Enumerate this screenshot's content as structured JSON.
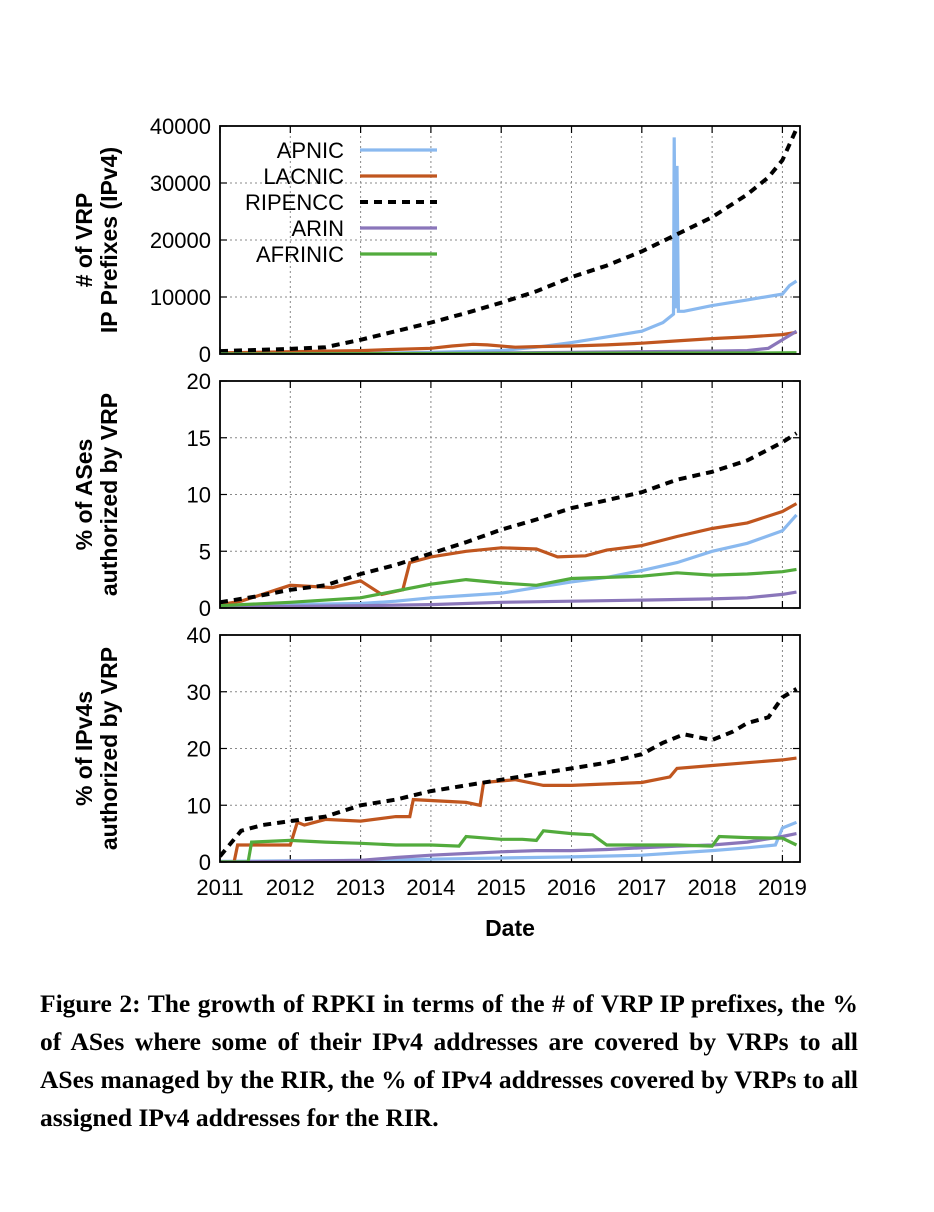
{
  "caption": "Figure 2: The growth of RPKI in terms of the # of VRP IP prefixes, the % of ASes where some of their IPv4 addresses are covered by VRPs to all ASes managed by the RIR, the % of IPv4 addresses covered by VRPs to all assigned IPv4 addresses for the RIR.",
  "chart_data": [
    {
      "type": "line",
      "ylabel": [
        "# of VRP",
        "IP Prefixes (IPv4)"
      ],
      "xlim": [
        2011,
        2019.25
      ],
      "ylim": [
        0,
        40000
      ],
      "yticks": [
        "0",
        "10000",
        "20000",
        "30000",
        "40000"
      ],
      "grid": true,
      "legend_position": "top-left",
      "series": [
        {
          "name": "APNIC",
          "color": "#8ab9ef",
          "style": "solid",
          "x": [
            2011,
            2012,
            2013,
            2014,
            2015,
            2015.5,
            2016,
            2016.5,
            2017,
            2017.3,
            2017.45,
            2017.46,
            2017.48,
            2017.5,
            2017.52,
            2017.6,
            2018,
            2018.5,
            2019,
            2019.1,
            2019.2
          ],
          "y": [
            0,
            0,
            100,
            300,
            600,
            1200,
            2000,
            3000,
            4000,
            5500,
            7000,
            38000,
            8000,
            33000,
            7500,
            7500,
            8500,
            9500,
            10500,
            12000,
            12800
          ]
        },
        {
          "name": "LACNIC",
          "color": "#c0561f",
          "style": "solid",
          "x": [
            2011,
            2012,
            2012.5,
            2013,
            2013.5,
            2014,
            2014.3,
            2014.6,
            2014.8,
            2015.2,
            2015.5,
            2016,
            2016.5,
            2017,
            2017.5,
            2018,
            2018.5,
            2019,
            2019.2
          ],
          "y": [
            200,
            400,
            500,
            600,
            800,
            1000,
            1400,
            1700,
            1600,
            1200,
            1300,
            1400,
            1600,
            1900,
            2300,
            2700,
            3000,
            3400,
            3800
          ]
        },
        {
          "name": "RIPENCC",
          "color": "#000000",
          "style": "dashed",
          "x": [
            2011,
            2011.5,
            2012,
            2012.5,
            2013,
            2013.5,
            2014,
            2014.5,
            2015,
            2015.5,
            2016,
            2016.5,
            2017,
            2017.5,
            2018,
            2018.5,
            2018.8,
            2019,
            2019.2
          ],
          "y": [
            500,
            700,
            900,
            1200,
            2500,
            4000,
            5500,
            7200,
            9000,
            11000,
            13500,
            15500,
            18000,
            21000,
            24000,
            28000,
            31000,
            34000,
            39500
          ]
        },
        {
          "name": "ARIN",
          "color": "#8a76ba",
          "style": "solid",
          "x": [
            2011,
            2012,
            2013,
            2014,
            2015,
            2016,
            2017,
            2018,
            2018.5,
            2018.8,
            2019,
            2019.2
          ],
          "y": [
            0,
            0,
            50,
            100,
            200,
            300,
            400,
            500,
            600,
            1000,
            2500,
            4000
          ]
        },
        {
          "name": "AFRINIC",
          "color": "#52ab3c",
          "style": "solid",
          "x": [
            2011,
            2013,
            2015,
            2017,
            2019,
            2019.2
          ],
          "y": [
            0,
            50,
            100,
            150,
            200,
            220
          ]
        }
      ]
    },
    {
      "type": "line",
      "ylabel": [
        "% of ASes",
        "authorized by VRP"
      ],
      "xlim": [
        2011,
        2019.25
      ],
      "ylim": [
        0,
        20
      ],
      "yticks": [
        "0",
        "5",
        "10",
        "15",
        "20"
      ],
      "grid": true,
      "series": [
        {
          "name": "APNIC",
          "color": "#8ab9ef",
          "style": "solid",
          "x": [
            2011,
            2012,
            2013,
            2013.5,
            2014,
            2014.5,
            2015,
            2015.5,
            2016,
            2016.5,
            2017,
            2017.5,
            2018,
            2018.5,
            2019,
            2019.2
          ],
          "y": [
            0.2,
            0.3,
            0.4,
            0.6,
            0.9,
            1.1,
            1.3,
            1.8,
            2.3,
            2.7,
            3.3,
            4.0,
            5.0,
            5.7,
            6.8,
            8.2
          ]
        },
        {
          "name": "LACNIC",
          "color": "#c0561f",
          "style": "solid",
          "x": [
            2011,
            2011.3,
            2011.6,
            2012,
            2012.6,
            2013,
            2013.3,
            2013.6,
            2013.7,
            2014,
            2014.5,
            2015,
            2015.5,
            2015.8,
            2016.2,
            2016.5,
            2017,
            2017.5,
            2018,
            2018.5,
            2019,
            2019.2
          ],
          "y": [
            0.3,
            0.6,
            1.2,
            2.0,
            1.8,
            2.4,
            1.2,
            1.6,
            4.0,
            4.5,
            5.0,
            5.3,
            5.2,
            4.5,
            4.6,
            5.1,
            5.5,
            6.3,
            7.0,
            7.5,
            8.5,
            9.2
          ]
        },
        {
          "name": "RIPENCC",
          "color": "#000000",
          "style": "dashed",
          "x": [
            2011,
            2011.5,
            2012,
            2012.5,
            2013,
            2013.5,
            2014,
            2014.5,
            2015,
            2015.5,
            2016,
            2016.5,
            2017,
            2017.5,
            2018,
            2018.5,
            2019,
            2019.2
          ],
          "y": [
            0.5,
            1.0,
            1.6,
            2.0,
            3.0,
            3.8,
            4.8,
            5.8,
            6.9,
            7.8,
            8.8,
            9.5,
            10.2,
            11.3,
            12.0,
            13.0,
            14.6,
            15.4
          ]
        },
        {
          "name": "ARIN",
          "color": "#8a76ba",
          "style": "solid",
          "x": [
            2011,
            2012,
            2013,
            2014,
            2015,
            2016,
            2017,
            2018,
            2018.5,
            2019,
            2019.2
          ],
          "y": [
            0.1,
            0.15,
            0.2,
            0.3,
            0.5,
            0.6,
            0.7,
            0.8,
            0.9,
            1.2,
            1.4
          ]
        },
        {
          "name": "AFRINIC",
          "color": "#52ab3c",
          "style": "solid",
          "x": [
            2011,
            2012,
            2013,
            2013.5,
            2014,
            2014.5,
            2015,
            2015.5,
            2016,
            2016.5,
            2017,
            2017.5,
            2018,
            2018.5,
            2019,
            2019.2
          ],
          "y": [
            0.2,
            0.5,
            0.9,
            1.5,
            2.1,
            2.5,
            2.2,
            2.0,
            2.6,
            2.7,
            2.8,
            3.1,
            2.9,
            3.0,
            3.2,
            3.4
          ]
        }
      ]
    },
    {
      "type": "line",
      "ylabel": [
        "% of IPv4s",
        "authorized by VRP"
      ],
      "xlabel": "Date",
      "xlim": [
        2011,
        2019.25
      ],
      "ylim": [
        0,
        40
      ],
      "yticks": [
        "0",
        "10",
        "20",
        "30",
        "40"
      ],
      "xticks": [
        "2011",
        "2012",
        "2013",
        "2014",
        "2015",
        "2016",
        "2017",
        "2018",
        "2019"
      ],
      "grid": true,
      "series": [
        {
          "name": "APNIC",
          "color": "#8ab9ef",
          "style": "solid",
          "x": [
            2011,
            2012,
            2013,
            2014,
            2015,
            2016,
            2017,
            2017.5,
            2018,
            2018.5,
            2018.9,
            2019,
            2019.2
          ],
          "y": [
            0.1,
            0.2,
            0.3,
            0.5,
            0.7,
            0.9,
            1.2,
            1.6,
            2.0,
            2.5,
            3.0,
            6.0,
            7.0
          ]
        },
        {
          "name": "LACNIC",
          "color": "#c0561f",
          "style": "solid",
          "x": [
            2011,
            2011.2,
            2011.25,
            2012,
            2012.1,
            2012.2,
            2012.5,
            2013,
            2013.5,
            2013.7,
            2013.75,
            2014.5,
            2014.7,
            2014.75,
            2015.2,
            2015.6,
            2016,
            2017,
            2017.4,
            2017.5,
            2018,
            2018.5,
            2019,
            2019.2
          ],
          "y": [
            0,
            0,
            3.0,
            3.0,
            7.0,
            6.5,
            7.5,
            7.2,
            8.0,
            8.0,
            11.0,
            10.5,
            10.0,
            14.0,
            14.5,
            13.5,
            13.5,
            14.0,
            15.0,
            16.5,
            17.0,
            17.5,
            18.0,
            18.3
          ]
        },
        {
          "name": "RIPENCC",
          "color": "#000000",
          "style": "dashed",
          "x": [
            2011,
            2011.3,
            2011.6,
            2012,
            2012.5,
            2013,
            2013.5,
            2014,
            2014.5,
            2015,
            2015.5,
            2016,
            2016.5,
            2017,
            2017.3,
            2017.6,
            2018,
            2018.3,
            2018.5,
            2018.8,
            2019,
            2019.2
          ],
          "y": [
            1.0,
            5.5,
            6.5,
            7.2,
            8.0,
            10.0,
            11.0,
            12.5,
            13.5,
            14.5,
            15.5,
            16.5,
            17.5,
            19.0,
            21.0,
            22.5,
            21.5,
            23.0,
            24.5,
            25.5,
            29.0,
            30.5
          ]
        },
        {
          "name": "ARIN",
          "color": "#8a76ba",
          "style": "solid",
          "x": [
            2011,
            2012,
            2013,
            2013.5,
            2014,
            2014.5,
            2015,
            2015.5,
            2016,
            2016.5,
            2017,
            2017.5,
            2018,
            2018.5,
            2019,
            2019.2
          ],
          "y": [
            0,
            0.1,
            0.3,
            0.8,
            1.2,
            1.5,
            1.8,
            2.0,
            2.0,
            2.2,
            2.5,
            2.8,
            3.0,
            3.5,
            4.5,
            5.0
          ]
        },
        {
          "name": "AFRINIC",
          "color": "#52ab3c",
          "style": "solid",
          "x": [
            2011,
            2011.4,
            2011.45,
            2012,
            2012.5,
            2013,
            2013.5,
            2014,
            2014.4,
            2014.5,
            2015,
            2015.3,
            2015.5,
            2015.6,
            2016,
            2016.3,
            2016.5,
            2017,
            2017.5,
            2018,
            2018.1,
            2018.5,
            2019,
            2019.2
          ],
          "y": [
            0,
            0,
            3.5,
            3.8,
            3.5,
            3.3,
            3.0,
            3.0,
            2.8,
            4.5,
            4.0,
            4.0,
            3.8,
            5.5,
            5.0,
            4.8,
            3.0,
            3.0,
            3.0,
            2.8,
            4.5,
            4.3,
            4.2,
            3.0
          ]
        }
      ]
    }
  ]
}
